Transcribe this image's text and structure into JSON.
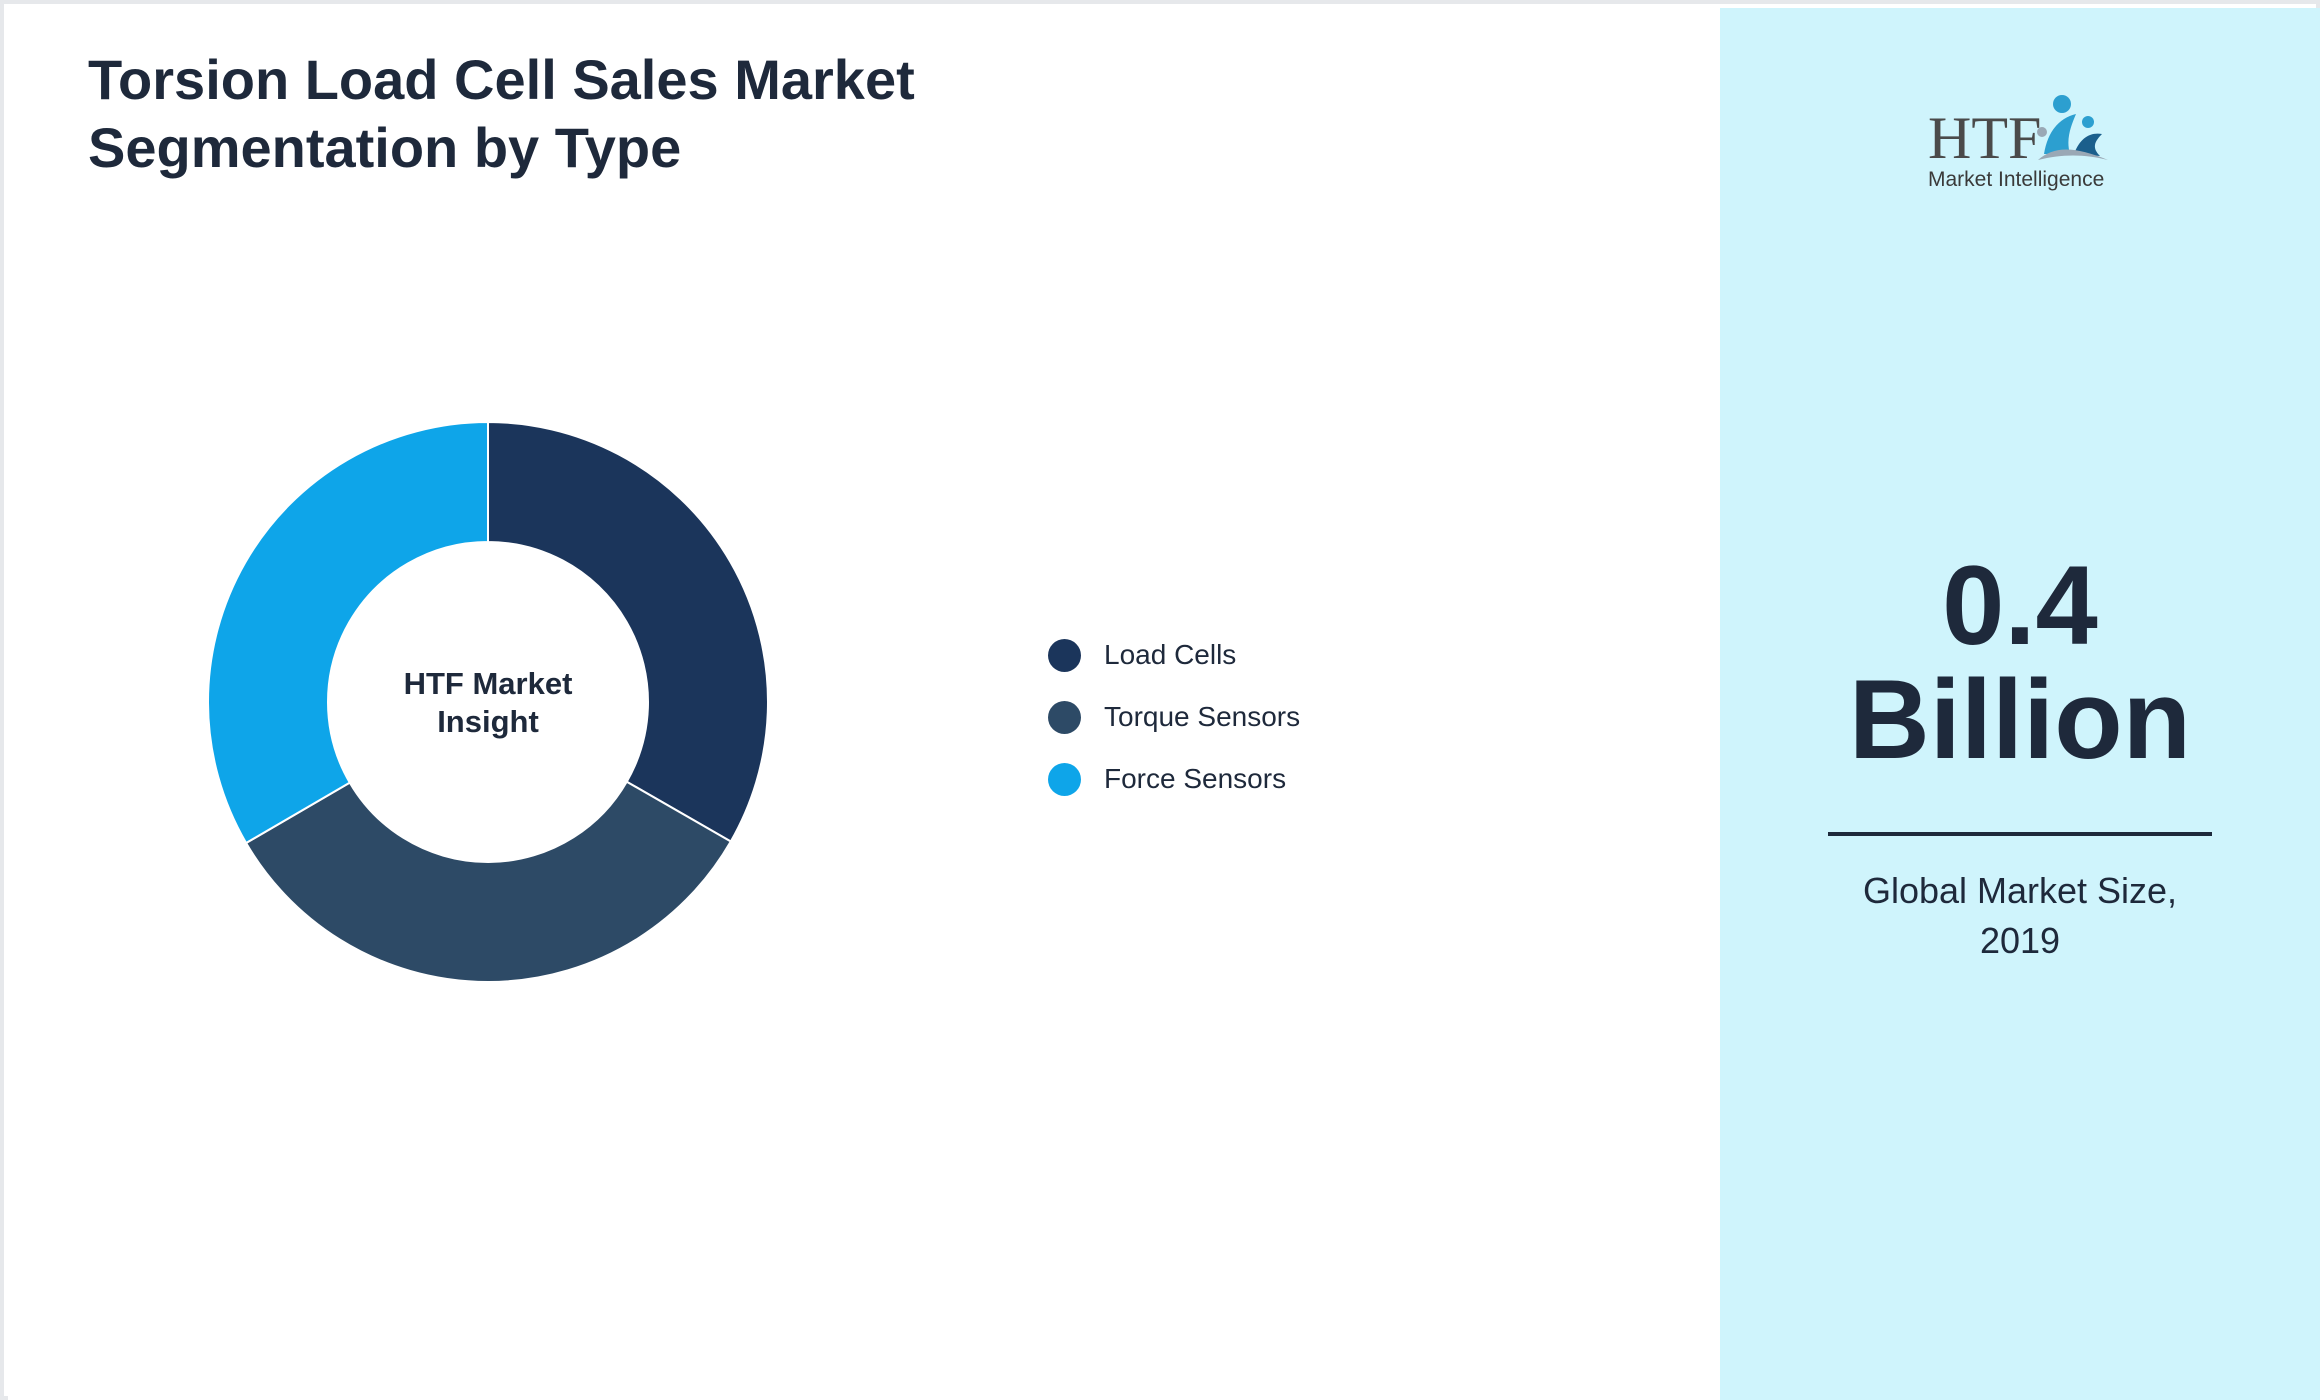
{
  "title": "Torsion Load Cell Sales Market Segmentation by Type",
  "chart_data": {
    "type": "pie",
    "variant": "donut",
    "title": "Torsion Load Cell Sales Market Segmentation by Type",
    "center_label_line1": "HTF Market",
    "center_label_line2": "Insight",
    "categories": [
      "Load Cells",
      "Torque Sensors",
      "Force Sensors"
    ],
    "values": [
      33.3,
      33.3,
      33.4
    ],
    "colors": [
      "#1b355b",
      "#2d4a66",
      "#0ea5e9"
    ],
    "legend_position": "right"
  },
  "side_panel": {
    "logo_text": "HTF",
    "logo_subtext": "Market Intelligence",
    "value": "0.4",
    "unit": "Billion",
    "caption_line1": "Global Market Size,",
    "caption_line2": "2019",
    "background_color": "#cff4fc"
  }
}
